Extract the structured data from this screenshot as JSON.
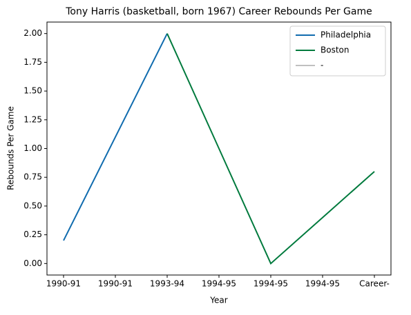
{
  "chart_data": {
    "type": "line",
    "title": "Tony Harris (basketball, born 1967) Career Rebounds Per Game",
    "xlabel": "Year",
    "ylabel": "Rebounds Per Game",
    "categories": [
      "1990-91",
      "1990-91",
      "1993-94",
      "1994-95",
      "1994-95",
      "1994-95",
      "Career-"
    ],
    "series": [
      {
        "name": "Philadelphia",
        "color": "#0f6bae",
        "values": [
          0.2,
          1.1,
          2.0,
          null,
          null,
          null,
          null
        ]
      },
      {
        "name": "Boston",
        "color": "#007a3d",
        "values": [
          null,
          null,
          2.0,
          1.0,
          0.0,
          0.4,
          0.8
        ]
      },
      {
        "name": "-",
        "color": "#c0c0c0",
        "values": [
          null,
          null,
          null,
          null,
          null,
          null,
          null
        ]
      }
    ],
    "ylim": [
      -0.1,
      2.1
    ],
    "yticks": [
      {
        "value": 0,
        "label": "0.00"
      },
      {
        "value": 0.25,
        "label": "0.25"
      },
      {
        "value": 0.5,
        "label": "0.50"
      },
      {
        "value": 0.75,
        "label": "0.75"
      },
      {
        "value": 1,
        "label": "1.00"
      },
      {
        "value": 1.25,
        "label": "1.25"
      },
      {
        "value": 1.5,
        "label": "1.50"
      },
      {
        "value": 1.75,
        "label": "1.75"
      },
      {
        "value": 2,
        "label": "2.00"
      }
    ],
    "legend": "upper right",
    "grid": false
  }
}
